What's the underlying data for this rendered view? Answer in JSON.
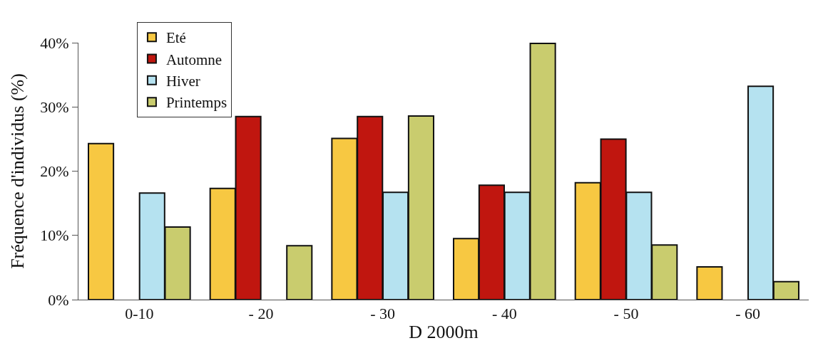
{
  "chart_data": {
    "type": "bar",
    "xlabel": "D 2000m",
    "ylabel": "Fréquence d'individus (%)",
    "categories": [
      "0-10",
      "- 20",
      "- 30",
      "- 40",
      "- 50",
      "- 60"
    ],
    "series": [
      {
        "name": "Eté",
        "color": "#f7c842",
        "values": [
          24.3,
          17.3,
          25.1,
          9.5,
          18.2,
          5.1
        ]
      },
      {
        "name": "Automne",
        "color": "#c0160f",
        "values": [
          null,
          28.5,
          28.5,
          17.8,
          25.0,
          null
        ]
      },
      {
        "name": "Hiver",
        "color": "#b5e2f0",
        "values": [
          16.6,
          null,
          16.7,
          16.7,
          16.7,
          33.2
        ]
      },
      {
        "name": "Printemps",
        "color": "#c9cc6e",
        "values": [
          11.3,
          8.4,
          28.6,
          39.9,
          8.5,
          2.8
        ]
      }
    ],
    "ylim": [
      0,
      40
    ],
    "yticks": [
      {
        "value": 0,
        "label": "0%"
      },
      {
        "value": 10,
        "label": "10%"
      },
      {
        "value": 20,
        "label": "20%"
      },
      {
        "value": 30,
        "label": "30%"
      },
      {
        "value": 40,
        "label": "40%"
      }
    ],
    "legend": "top left"
  }
}
